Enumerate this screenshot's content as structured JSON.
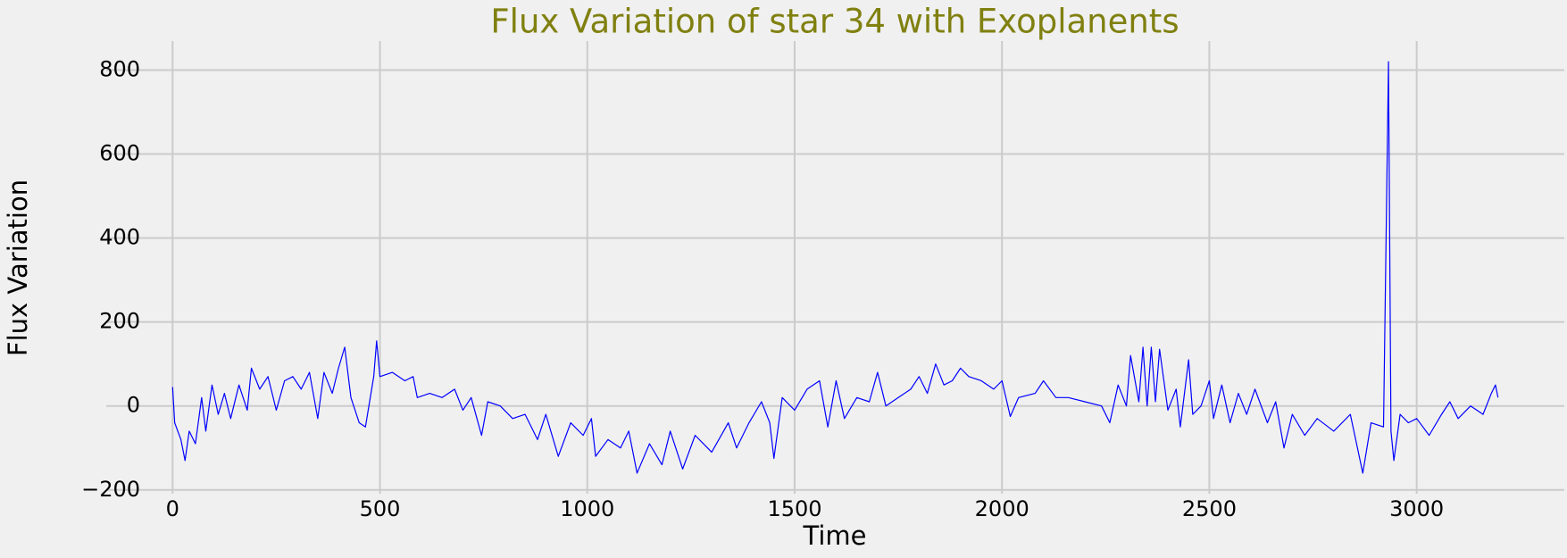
{
  "chart_data": {
    "type": "line",
    "title": "Flux Variation of star 34 with Exoplanents",
    "x_label": "Time",
    "y_label": "Flux Variation",
    "color": "#0000ff",
    "grid": true,
    "xlim": [
      -160,
      3356
    ],
    "ylim": [
      -209,
      869
    ],
    "xticks": [
      0,
      500,
      1000,
      1500,
      2000,
      2500,
      3000
    ],
    "yticks": [
      {
        "value": -200,
        "label": "−200"
      },
      0,
      200,
      400,
      600,
      800
    ],
    "x": [
      0,
      5,
      20,
      30,
      40,
      55,
      70,
      80,
      95,
      110,
      125,
      140,
      160,
      180,
      190,
      210,
      230,
      250,
      270,
      290,
      310,
      330,
      350,
      365,
      385,
      400,
      415,
      430,
      450,
      465,
      475,
      485,
      492,
      500,
      530,
      560,
      580,
      590,
      620,
      650,
      680,
      700,
      720,
      745,
      760,
      790,
      820,
      850,
      880,
      900,
      930,
      960,
      990,
      1010,
      1020,
      1050,
      1080,
      1100,
      1120,
      1150,
      1180,
      1200,
      1230,
      1260,
      1300,
      1340,
      1360,
      1390,
      1420,
      1440,
      1450,
      1470,
      1500,
      1530,
      1560,
      1580,
      1600,
      1620,
      1650,
      1680,
      1700,
      1720,
      1750,
      1780,
      1800,
      1820,
      1840,
      1860,
      1880,
      1900,
      1920,
      1950,
      1980,
      2000,
      2020,
      2040,
      2080,
      2100,
      2130,
      2160,
      2200,
      2240,
      2260,
      2280,
      2300,
      2310,
      2330,
      2340,
      2350,
      2360,
      2370,
      2380,
      2400,
      2420,
      2430,
      2450,
      2460,
      2480,
      2500,
      2510,
      2530,
      2550,
      2570,
      2590,
      2610,
      2640,
      2660,
      2680,
      2700,
      2730,
      2760,
      2800,
      2840,
      2870,
      2890,
      2920,
      2932,
      2938,
      2945,
      2960,
      2980,
      3000,
      3030,
      3060,
      3080,
      3100,
      3130,
      3160,
      3180,
      3190,
      3196
    ],
    "values": [
      45,
      -40,
      -80,
      -130,
      -60,
      -90,
      20,
      -60,
      50,
      -20,
      30,
      -30,
      50,
      -10,
      90,
      40,
      70,
      -10,
      60,
      70,
      40,
      80,
      -30,
      80,
      30,
      90,
      140,
      20,
      -40,
      -50,
      10,
      70,
      155,
      70,
      80,
      60,
      70,
      20,
      30,
      20,
      40,
      -10,
      20,
      -70,
      10,
      0,
      -30,
      -20,
      -80,
      -20,
      -120,
      -40,
      -70,
      -30,
      -120,
      -80,
      -100,
      -60,
      -160,
      -90,
      -140,
      -60,
      -150,
      -70,
      -110,
      -40,
      -100,
      -40,
      10,
      -40,
      -125,
      20,
      -10,
      40,
      60,
      -50,
      60,
      -30,
      20,
      10,
      80,
      0,
      20,
      40,
      70,
      30,
      100,
      50,
      60,
      90,
      70,
      60,
      40,
      60,
      -25,
      20,
      30,
      60,
      20,
      20,
      10,
      0,
      -40,
      50,
      0,
      120,
      10,
      140,
      0,
      140,
      10,
      135,
      -10,
      40,
      -50,
      110,
      -20,
      0,
      60,
      -30,
      50,
      -40,
      30,
      -20,
      40,
      -40,
      10,
      -100,
      -20,
      -70,
      -30,
      -60,
      -20,
      -160,
      -40,
      -50,
      820,
      -60,
      -130,
      -20,
      -40,
      -30,
      -70,
      -20,
      10,
      -30,
      0,
      -20,
      30,
      50,
      20
    ]
  }
}
